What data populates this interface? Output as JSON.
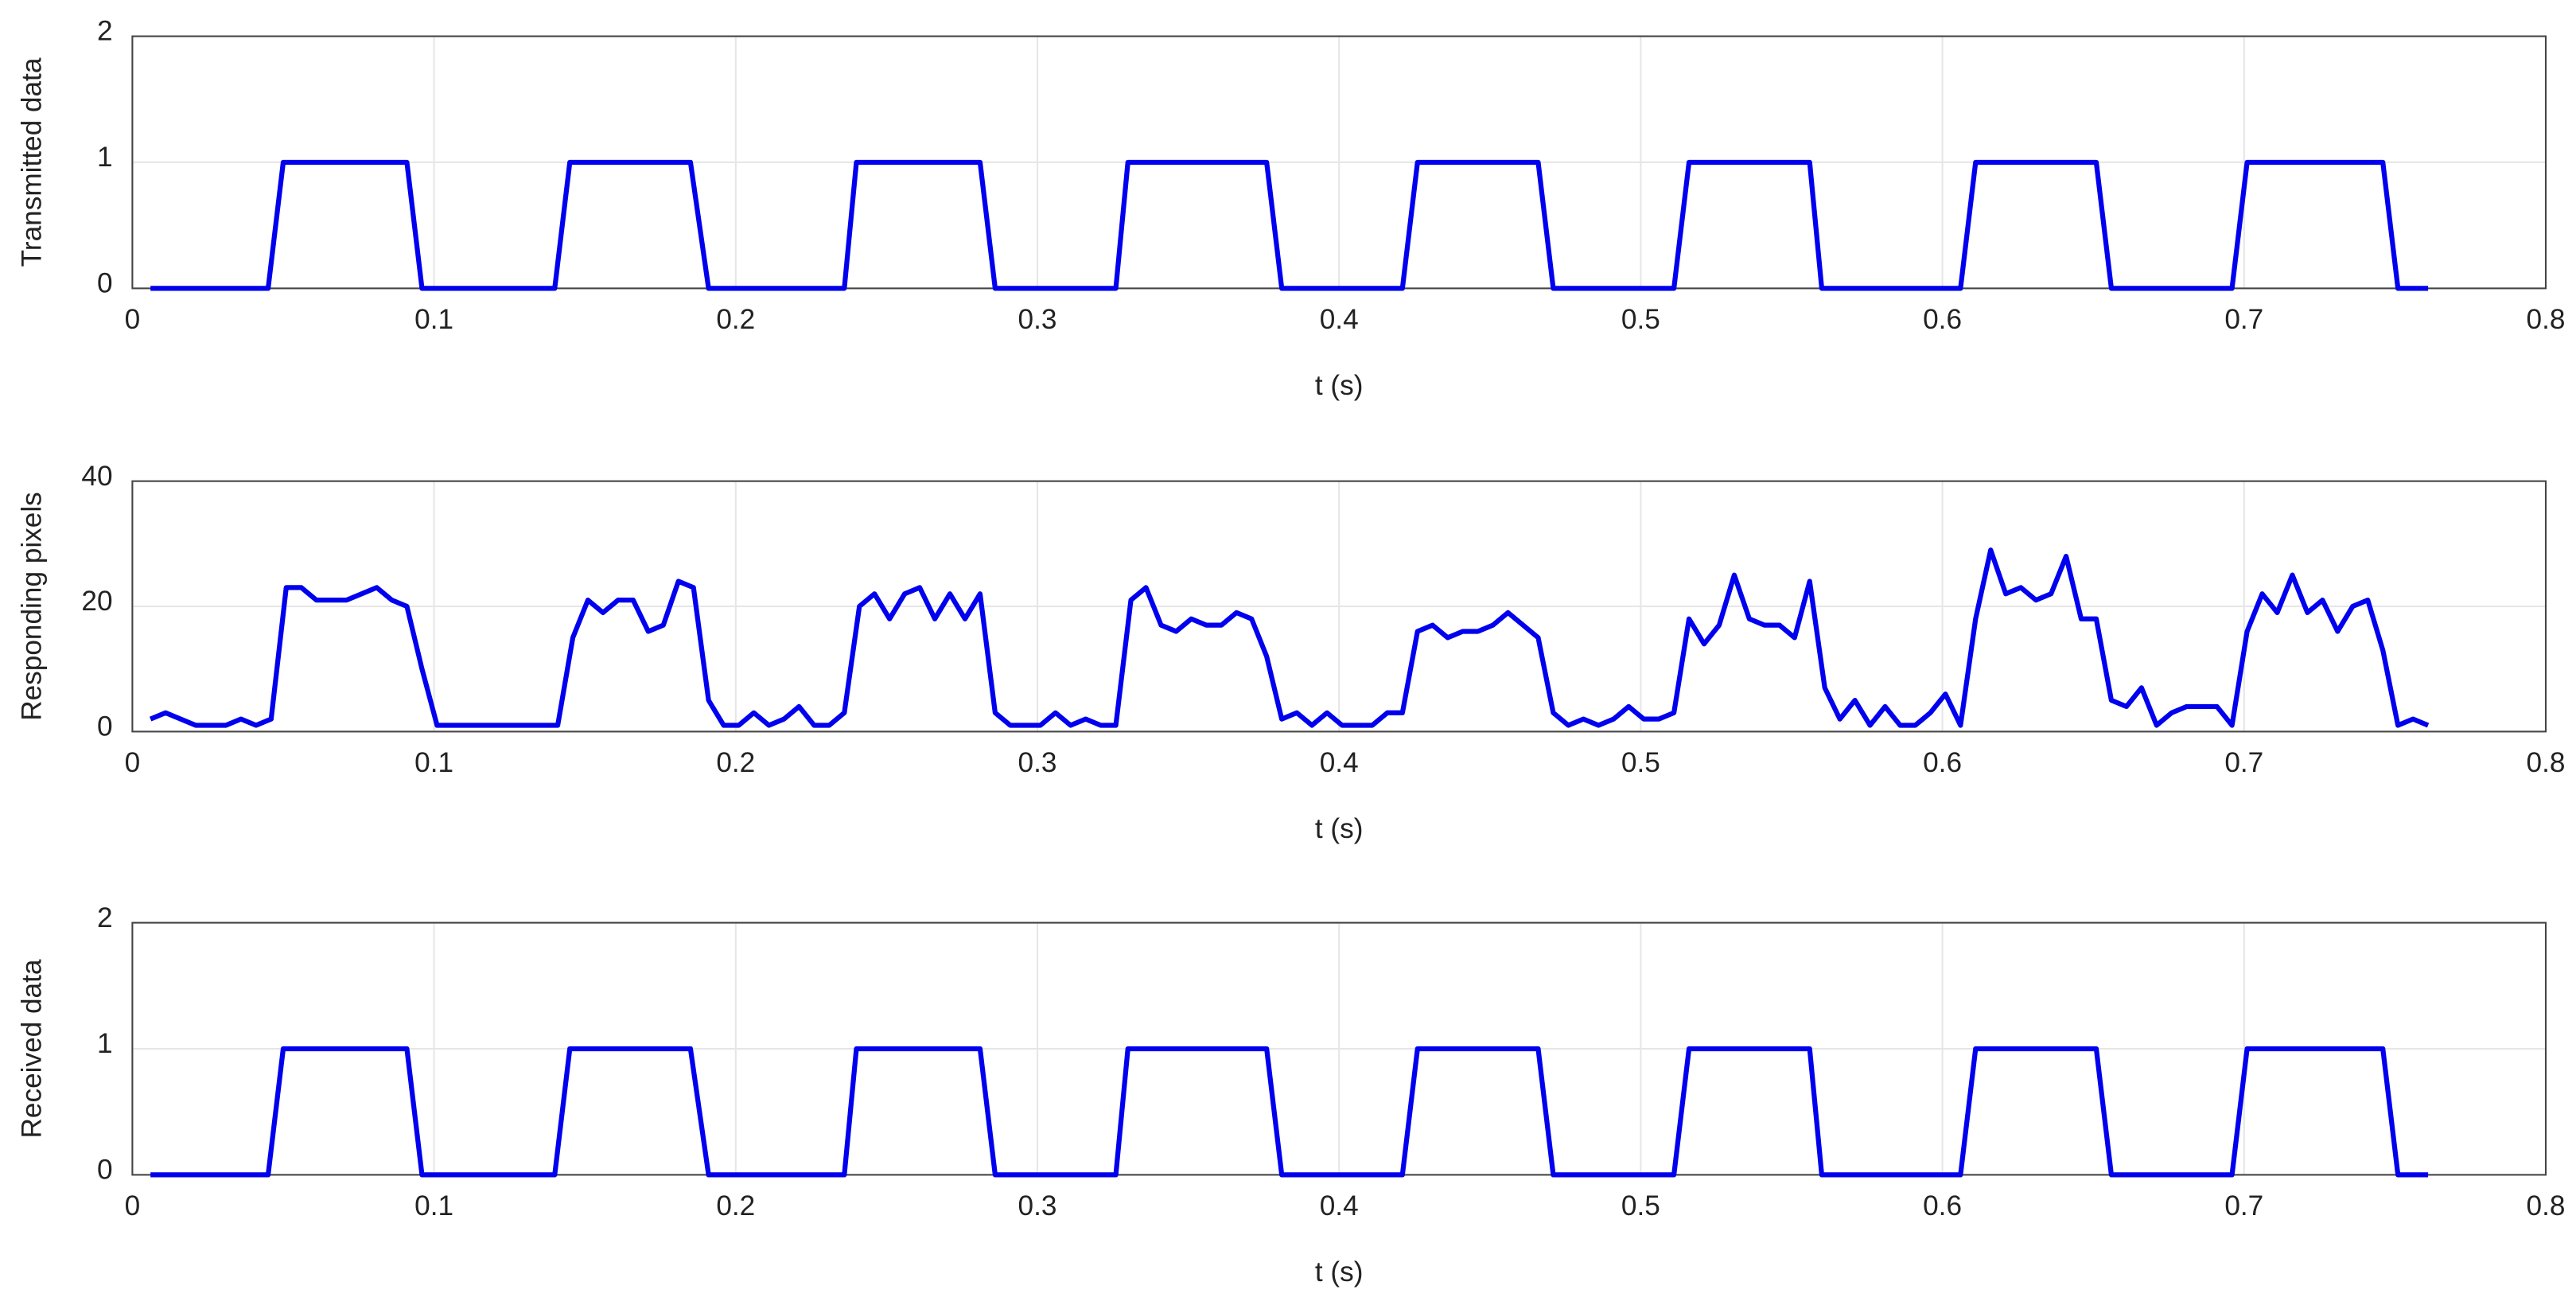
{
  "chart_data": [
    {
      "type": "line",
      "ylabel": "Transmitted data",
      "xlabel": "t (s)",
      "color": "#0000ee",
      "grid": true,
      "xlim": [
        0,
        0.8
      ],
      "xticks": [
        0,
        0.1,
        0.2,
        0.3,
        0.4,
        0.5,
        0.6,
        0.7,
        0.8
      ],
      "ylim": [
        0,
        2
      ],
      "yticks": [
        0,
        1,
        2
      ],
      "x": [
        0.006,
        0.045,
        0.05,
        0.091,
        0.096,
        0.14,
        0.145,
        0.185,
        0.191,
        0.236,
        0.24,
        0.281,
        0.286,
        0.326,
        0.33,
        0.376,
        0.381,
        0.421,
        0.426,
        0.466,
        0.471,
        0.511,
        0.516,
        0.556,
        0.56,
        0.606,
        0.611,
        0.651,
        0.656,
        0.696,
        0.701,
        0.746,
        0.751,
        0.761
      ],
      "values": [
        0,
        0,
        1,
        1,
        0,
        0,
        1,
        1,
        0,
        0,
        1,
        1,
        0,
        0,
        1,
        1,
        0,
        0,
        1,
        1,
        0,
        0,
        1,
        1,
        0,
        0,
        1,
        1,
        0,
        0,
        1,
        1,
        0,
        0
      ]
    },
    {
      "type": "line",
      "ylabel": "Responding pixels",
      "xlabel": "t (s)",
      "color": "#0000ee",
      "grid": true,
      "xlim": [
        0,
        0.8
      ],
      "xticks": [
        0,
        0.1,
        0.2,
        0.3,
        0.4,
        0.5,
        0.6,
        0.7,
        0.8
      ],
      "ylim": [
        0,
        40
      ],
      "yticks": [
        0,
        20,
        40
      ],
      "x": [
        0.006,
        0.011,
        0.016,
        0.021,
        0.026,
        0.031,
        0.036,
        0.041,
        0.046,
        0.051,
        0.056,
        0.061,
        0.066,
        0.071,
        0.076,
        0.081,
        0.086,
        0.091,
        0.096,
        0.101,
        0.106,
        0.111,
        0.116,
        0.121,
        0.126,
        0.131,
        0.136,
        0.141,
        0.146,
        0.151,
        0.156,
        0.161,
        0.166,
        0.171,
        0.176,
        0.181,
        0.186,
        0.191,
        0.196,
        0.201,
        0.206,
        0.211,
        0.216,
        0.221,
        0.226,
        0.231,
        0.236,
        0.241,
        0.246,
        0.251,
        0.256,
        0.261,
        0.266,
        0.271,
        0.276,
        0.281,
        0.286,
        0.291,
        0.296,
        0.301,
        0.306,
        0.311,
        0.316,
        0.321,
        0.326,
        0.331,
        0.336,
        0.341,
        0.346,
        0.351,
        0.356,
        0.361,
        0.366,
        0.371,
        0.376,
        0.381,
        0.386,
        0.391,
        0.396,
        0.401,
        0.406,
        0.411,
        0.416,
        0.421,
        0.426,
        0.431,
        0.436,
        0.441,
        0.446,
        0.451,
        0.456,
        0.461,
        0.466,
        0.471,
        0.476,
        0.481,
        0.486,
        0.491,
        0.496,
        0.501,
        0.506,
        0.511,
        0.516,
        0.521,
        0.526,
        0.531,
        0.536,
        0.541,
        0.546,
        0.551,
        0.556,
        0.561,
        0.566,
        0.571,
        0.576,
        0.581,
        0.586,
        0.591,
        0.596,
        0.601,
        0.606,
        0.611,
        0.616,
        0.621,
        0.626,
        0.631,
        0.636,
        0.641,
        0.646,
        0.651,
        0.656,
        0.661,
        0.666,
        0.671,
        0.676,
        0.681,
        0.686,
        0.691,
        0.696,
        0.701,
        0.706,
        0.711,
        0.716,
        0.721,
        0.726,
        0.731,
        0.736,
        0.741,
        0.746,
        0.751,
        0.756,
        0.761
      ],
      "values": [
        2,
        3,
        2,
        1,
        1,
        1,
        2,
        1,
        2,
        23,
        23,
        21,
        21,
        21,
        22,
        23,
        21,
        20,
        10,
        1,
        1,
        1,
        1,
        1,
        1,
        1,
        1,
        1,
        15,
        21,
        19,
        21,
        21,
        16,
        17,
        24,
        23,
        5,
        1,
        1,
        3,
        1,
        2,
        4,
        1,
        1,
        3,
        20,
        22,
        18,
        22,
        23,
        18,
        22,
        18,
        22,
        3,
        1,
        1,
        1,
        3,
        1,
        2,
        1,
        1,
        21,
        23,
        17,
        16,
        18,
        17,
        17,
        19,
        18,
        12,
        2,
        3,
        1,
        3,
        1,
        1,
        1,
        3,
        3,
        16,
        17,
        15,
        16,
        16,
        17,
        19,
        17,
        15,
        3,
        1,
        2,
        1,
        2,
        4,
        2,
        2,
        3,
        18,
        14,
        17,
        25,
        18,
        17,
        17,
        15,
        24,
        7,
        2,
        5,
        1,
        4,
        1,
        1,
        3,
        6,
        1,
        18,
        29,
        22,
        23,
        21,
        22,
        28,
        18,
        18,
        5,
        4,
        7,
        1,
        3,
        4,
        4,
        4,
        1,
        16,
        22,
        19,
        25,
        19,
        21,
        16,
        20,
        21,
        13,
        1,
        2,
        1
      ]
    },
    {
      "type": "line",
      "ylabel": "Received data",
      "xlabel": "t (s)",
      "color": "#0000ee",
      "grid": true,
      "xlim": [
        0,
        0.8
      ],
      "xticks": [
        0,
        0.1,
        0.2,
        0.3,
        0.4,
        0.5,
        0.6,
        0.7,
        0.8
      ],
      "ylim": [
        0,
        2
      ],
      "yticks": [
        0,
        1,
        2
      ],
      "x": [
        0.006,
        0.045,
        0.05,
        0.091,
        0.096,
        0.14,
        0.145,
        0.185,
        0.191,
        0.236,
        0.24,
        0.281,
        0.286,
        0.326,
        0.33,
        0.376,
        0.381,
        0.421,
        0.426,
        0.466,
        0.471,
        0.511,
        0.516,
        0.556,
        0.56,
        0.606,
        0.611,
        0.651,
        0.656,
        0.696,
        0.701,
        0.746,
        0.751,
        0.761
      ],
      "values": [
        0,
        0,
        1,
        1,
        0,
        0,
        1,
        1,
        0,
        0,
        1,
        1,
        0,
        0,
        1,
        1,
        0,
        0,
        1,
        1,
        0,
        0,
        1,
        1,
        0,
        0,
        1,
        1,
        0,
        0,
        1,
        1,
        0,
        0
      ]
    }
  ]
}
